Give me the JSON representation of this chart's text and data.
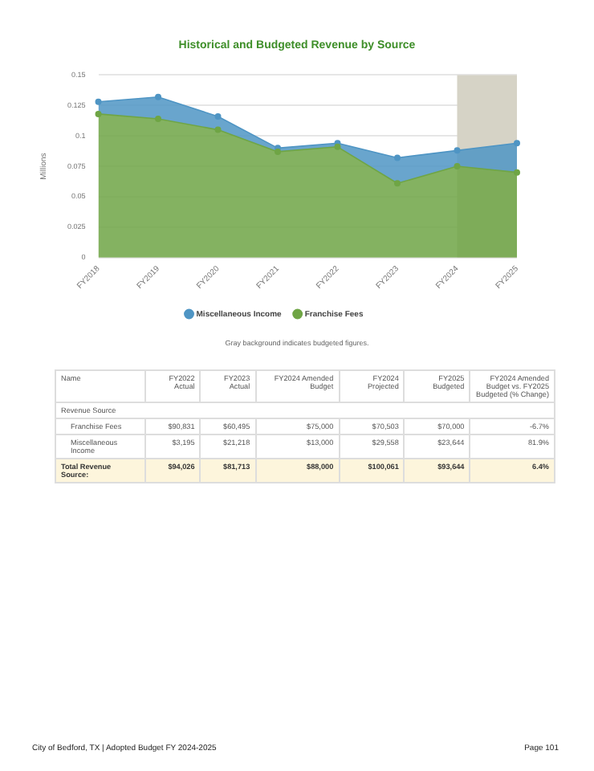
{
  "chart_data": {
    "type": "area",
    "stacked": true,
    "title": "Historical and Budgeted Revenue by Source",
    "ylabel": "Millions",
    "categories": [
      "FY2018",
      "FY2019",
      "FY2020",
      "FY2021",
      "FY2022",
      "FY2023",
      "FY2024",
      "FY2025"
    ],
    "series": [
      {
        "name": "Franchise Fees",
        "color": "#6fa545",
        "values": [
          0.118,
          0.114,
          0.105,
          0.087,
          0.091,
          0.061,
          0.075,
          0.07
        ]
      },
      {
        "name": "Miscellaneous Income",
        "color": "#4f95c4",
        "values": [
          0.01,
          0.018,
          0.011,
          0.003,
          0.003,
          0.021,
          0.013,
          0.024
        ]
      }
    ],
    "ylim": [
      0,
      0.15
    ],
    "yticks": [
      0,
      0.025,
      0.05,
      0.075,
      0.1,
      0.125,
      0.15
    ],
    "grid": "y",
    "legend": "bottom",
    "marker": "circle",
    "bands": [
      {
        "axis": "x",
        "from": "FY2024",
        "to": "FY2025",
        "color": "#d6d3c6"
      }
    ],
    "annotations": [
      "Gray background indicates budgeted figures.",
      "Name",
      "FY2022 Actual",
      "FY2023 Actual",
      "FY2024 Amended Budget",
      "FY2024 Projected",
      "FY2025 Budgeted",
      "FY2024 Amended Budget vs. FY2025 Budgeted (% Change)",
      "Revenue Source",
      "Franchise Fees",
      "$90,831",
      "$60,495",
      "$75,000",
      "$70,503",
      "$70,000",
      "-6.7%",
      "Miscellaneous Income",
      "$3,195",
      "$21,218",
      "$13,000",
      "$29,558",
      "$23,644",
      "81.9%",
      "Total Revenue Source:",
      "$94,026",
      "$81,713",
      "$88,000",
      "$100,061",
      "$93,644",
      "6.4%",
      "City of Bedford, TX | Adopted Budget FY 2024-2025",
      "Page 101"
    ]
  }
}
